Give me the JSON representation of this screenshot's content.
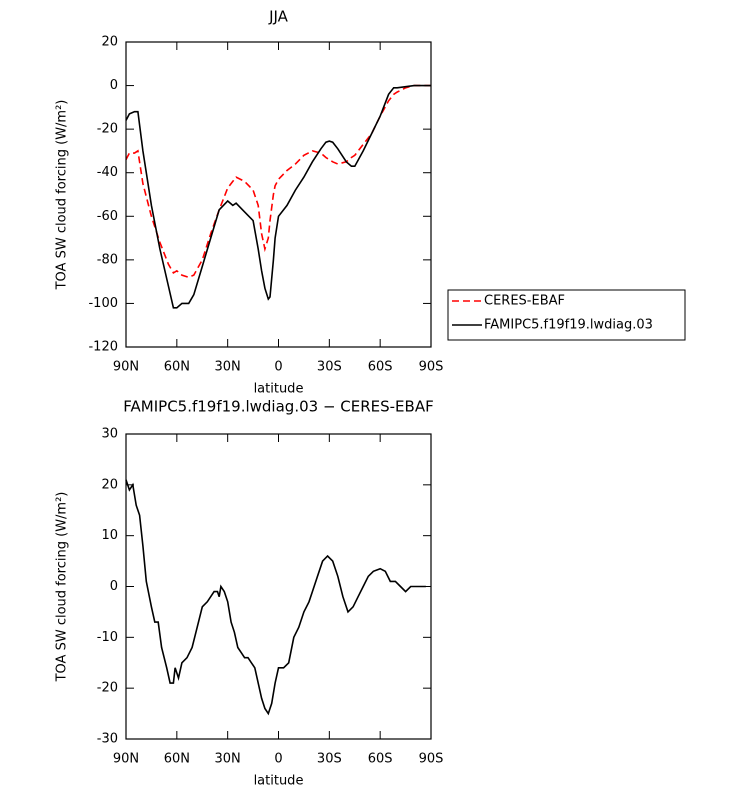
{
  "chart_data": [
    {
      "type": "line",
      "title": "JJA",
      "x_label": "latitude",
      "y_label": "TOA SW cloud forcing (W/m²)",
      "xlim": [
        90,
        -90
      ],
      "ylim": [
        -120,
        20
      ],
      "xticks": [
        {
          "value": 90,
          "label": "90N"
        },
        {
          "value": 60,
          "label": "60N"
        },
        {
          "value": 30,
          "label": "30N"
        },
        0,
        {
          "value": -30,
          "label": "30S"
        },
        {
          "value": -60,
          "label": "60S"
        },
        {
          "value": -90,
          "label": "90S"
        }
      ],
      "yticks": [
        20,
        0,
        -20,
        -40,
        -60,
        -80,
        -100,
        -120
      ],
      "legend": "right",
      "x": [
        90,
        88,
        85,
        83,
        80,
        75,
        70,
        65,
        62,
        60,
        57,
        53,
        50,
        45,
        40,
        35,
        30,
        27,
        25,
        20,
        15,
        12,
        10,
        8,
        6,
        5,
        3,
        2,
        0,
        -5,
        -10,
        -15,
        -20,
        -25,
        -28,
        -30,
        -32,
        -35,
        -40,
        -43,
        -45,
        -50,
        -55,
        -60,
        -65,
        -68,
        -70,
        -75,
        -80,
        -85,
        -90
      ],
      "series": [
        {
          "name": "CERES-EBAF",
          "color": "#ff0000",
          "linestyle": "dashed",
          "values": [
            -34,
            -31,
            -31,
            -30,
            -45,
            -60,
            -72,
            -82,
            -86,
            -85,
            -87,
            -88,
            -87,
            -80,
            -68,
            -57,
            -47,
            -44,
            -42,
            -44,
            -48,
            -55,
            -68,
            -75,
            -70,
            -62,
            -50,
            -46,
            -43,
            -39,
            -36,
            -32,
            -30,
            -31,
            -33,
            -34,
            -35,
            -36,
            -35,
            -33,
            -32,
            -27,
            -22,
            -14,
            -7,
            -4,
            -3,
            -1,
            0,
            0,
            0
          ]
        },
        {
          "name": "FAMIPC5.f19f19.lwdiag.03",
          "color": "#000000",
          "linestyle": "solid",
          "values": [
            -16,
            -13,
            -12,
            -12,
            -30,
            -55,
            -75,
            -92,
            -102,
            -102,
            -100,
            -100,
            -96,
            -83,
            -70,
            -57,
            -53,
            -55,
            -54,
            -58,
            -62,
            -75,
            -85,
            -93,
            -98,
            -97,
            -80,
            -70,
            -60,
            -55,
            -48,
            -42,
            -35,
            -29,
            -26,
            -25.5,
            -26,
            -29,
            -35,
            -37,
            -37,
            -30,
            -22,
            -14,
            -4,
            -1,
            -1,
            -0.5,
            0,
            0,
            0
          ]
        }
      ]
    },
    {
      "type": "line",
      "title": "FAMIPC5.f19f19.lwdiag.03 − CERES-EBAF",
      "x_label": "latitude",
      "y_label": "TOA SW cloud forcing (W/m²)",
      "xlim": [
        90,
        -90
      ],
      "ylim": [
        -30,
        30
      ],
      "xticks": [
        {
          "value": 90,
          "label": "90N"
        },
        {
          "value": 60,
          "label": "60N"
        },
        {
          "value": 30,
          "label": "30N"
        },
        0,
        {
          "value": -30,
          "label": "30S"
        },
        {
          "value": -60,
          "label": "60S"
        },
        {
          "value": -90,
          "label": "90S"
        }
      ],
      "yticks": [
        30,
        20,
        10,
        0,
        -10,
        -20,
        -30
      ],
      "x": [
        90,
        88,
        86,
        84,
        82,
        80,
        78,
        75,
        73,
        71,
        69,
        66,
        64,
        62,
        61,
        59,
        57,
        54,
        51,
        48,
        45,
        42,
        40,
        38,
        36,
        35,
        34,
        32,
        30,
        28,
        26,
        24,
        22,
        20,
        18,
        16,
        14,
        12,
        10,
        8,
        6,
        4,
        2,
        0,
        -3,
        -6,
        -9,
        -12,
        -15,
        -18,
        -20,
        -23,
        -26,
        -29,
        -32,
        -35,
        -38,
        -41,
        -44,
        -47,
        -50,
        -53,
        -56,
        -60,
        -63,
        -66,
        -69,
        -72,
        -75,
        -78,
        -81,
        -84,
        -87
      ],
      "series": [
        {
          "color": "#000000",
          "linestyle": "solid",
          "values": [
            21,
            19,
            20,
            16,
            14,
            8,
            1,
            -4,
            -7,
            -7,
            -12,
            -16,
            -19,
            -19,
            -16,
            -18,
            -15,
            -14,
            -12,
            -8,
            -4,
            -3,
            -2,
            -1,
            -1,
            -2,
            0,
            -1,
            -3,
            -7,
            -9,
            -12,
            -13,
            -14,
            -14,
            -15,
            -16,
            -19,
            -22,
            -24,
            -25,
            -23,
            -19,
            -16,
            -16,
            -15,
            -10,
            -8,
            -5,
            -3,
            -1,
            2,
            5,
            6,
            5,
            2,
            -2,
            -5,
            -4,
            -2,
            0,
            2,
            3,
            3.5,
            3,
            1,
            1,
            0,
            -1,
            0,
            0,
            0,
            0
          ]
        }
      ]
    }
  ]
}
